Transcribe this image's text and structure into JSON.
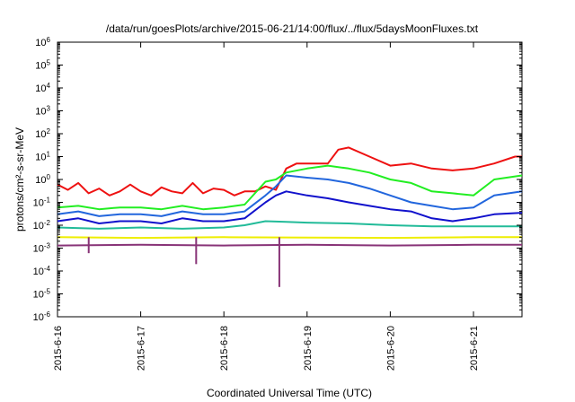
{
  "chart_data": {
    "type": "line",
    "title": "/data/run/goesPlots/archive/2015-06-21/14:00/flux/../flux/5daysMoonFluxes.txt",
    "xlabel": "Coordinated Universal Time (UTC)",
    "ylabel": "protons/cm²-s-sr-MeV",
    "x_unit": "days",
    "xlim": [
      "2015-06-16",
      "2015-06-21 14:00"
    ],
    "x_ticks": [
      "2015-6-16",
      "2015-6-17",
      "2015-6-18",
      "2015-6-19",
      "2015-6-20",
      "2015-6-21"
    ],
    "y_scale": "log",
    "ylim": [
      1e-06,
      1000000.0
    ],
    "y_ticks": [
      {
        "base": "10",
        "exp": "-6"
      },
      {
        "base": "10",
        "exp": "-5"
      },
      {
        "base": "10",
        "exp": "-4"
      },
      {
        "base": "10",
        "exp": "-3"
      },
      {
        "base": "10",
        "exp": "-2"
      },
      {
        "base": "10",
        "exp": "-1"
      },
      {
        "base": "10",
        "exp": "0"
      },
      {
        "base": "10",
        "exp": "1"
      },
      {
        "base": "10",
        "exp": "2"
      },
      {
        "base": "10",
        "exp": "3"
      },
      {
        "base": "10",
        "exp": "4"
      },
      {
        "base": "10",
        "exp": "5"
      },
      {
        "base": "10",
        "exp": "6"
      }
    ],
    "grid": false,
    "legend": "none",
    "series": [
      {
        "color": "#ee1111",
        "x": [
          "2015-06-16 00:00",
          "2015-06-16 03:00",
          "2015-06-16 06:00",
          "2015-06-16 09:00",
          "2015-06-16 12:00",
          "2015-06-16 15:00",
          "2015-06-16 18:00",
          "2015-06-16 21:00",
          "2015-06-17 00:00",
          "2015-06-17 03:00",
          "2015-06-17 06:00",
          "2015-06-17 09:00",
          "2015-06-17 12:00",
          "2015-06-17 15:00",
          "2015-06-17 18:00",
          "2015-06-17 21:00",
          "2015-06-18 00:00",
          "2015-06-18 03:00",
          "2015-06-18 06:00",
          "2015-06-18 09:00",
          "2015-06-18 12:00",
          "2015-06-18 15:00",
          "2015-06-18 18:00",
          "2015-06-18 21:00",
          "2015-06-19 00:00",
          "2015-06-19 06:00",
          "2015-06-19 09:00",
          "2015-06-19 12:00",
          "2015-06-19 18:00",
          "2015-06-20 00:00",
          "2015-06-20 06:00",
          "2015-06-20 12:00",
          "2015-06-20 18:00",
          "2015-06-21 00:00",
          "2015-06-21 06:00",
          "2015-06-21 12:00",
          "2015-06-21 14:00"
        ],
        "y": [
          0.6,
          0.35,
          0.7,
          0.25,
          0.4,
          0.2,
          0.3,
          0.6,
          0.3,
          0.2,
          0.45,
          0.3,
          0.25,
          0.7,
          0.25,
          0.4,
          0.35,
          0.2,
          0.3,
          0.3,
          0.5,
          0.35,
          3,
          5,
          5,
          5,
          20,
          25,
          10,
          4,
          5,
          3,
          2.5,
          3,
          5,
          10,
          10
        ]
      },
      {
        "color": "#22ee22",
        "x": [
          "2015-06-16 00:00",
          "2015-06-16 06:00",
          "2015-06-16 12:00",
          "2015-06-16 18:00",
          "2015-06-17 00:00",
          "2015-06-17 06:00",
          "2015-06-17 12:00",
          "2015-06-17 18:00",
          "2015-06-18 00:00",
          "2015-06-18 06:00",
          "2015-06-18 12:00",
          "2015-06-18 15:00",
          "2015-06-18 18:00",
          "2015-06-19 00:00",
          "2015-06-19 06:00",
          "2015-06-19 12:00",
          "2015-06-19 18:00",
          "2015-06-20 00:00",
          "2015-06-20 06:00",
          "2015-06-20 12:00",
          "2015-06-20 18:00",
          "2015-06-21 00:00",
          "2015-06-21 06:00",
          "2015-06-21 14:00"
        ],
        "y": [
          0.06,
          0.07,
          0.05,
          0.06,
          0.06,
          0.05,
          0.07,
          0.05,
          0.06,
          0.08,
          0.8,
          1,
          2,
          3,
          4,
          3,
          2,
          1,
          0.7,
          0.3,
          0.25,
          0.2,
          1,
          1.5
        ]
      },
      {
        "color": "#2266dd",
        "x": [
          "2015-06-16 00:00",
          "2015-06-16 06:00",
          "2015-06-16 12:00",
          "2015-06-16 18:00",
          "2015-06-17 00:00",
          "2015-06-17 06:00",
          "2015-06-17 12:00",
          "2015-06-17 18:00",
          "2015-06-18 00:00",
          "2015-06-18 06:00",
          "2015-06-18 12:00",
          "2015-06-18 15:00",
          "2015-06-18 18:00",
          "2015-06-19 00:00",
          "2015-06-19 06:00",
          "2015-06-19 12:00",
          "2015-06-19 18:00",
          "2015-06-20 00:00",
          "2015-06-20 06:00",
          "2015-06-20 12:00",
          "2015-06-20 18:00",
          "2015-06-21 00:00",
          "2015-06-21 06:00",
          "2015-06-21 14:00"
        ],
        "y": [
          0.03,
          0.04,
          0.025,
          0.03,
          0.03,
          0.025,
          0.04,
          0.03,
          0.03,
          0.04,
          0.2,
          0.5,
          1.5,
          1.2,
          1,
          0.7,
          0.4,
          0.2,
          0.1,
          0.07,
          0.05,
          0.06,
          0.2,
          0.3
        ]
      },
      {
        "color": "#1111cc",
        "x": [
          "2015-06-16 00:00",
          "2015-06-16 06:00",
          "2015-06-16 12:00",
          "2015-06-16 18:00",
          "2015-06-17 00:00",
          "2015-06-17 06:00",
          "2015-06-17 12:00",
          "2015-06-17 18:00",
          "2015-06-18 00:00",
          "2015-06-18 06:00",
          "2015-06-18 12:00",
          "2015-06-18 15:00",
          "2015-06-18 18:00",
          "2015-06-19 00:00",
          "2015-06-19 06:00",
          "2015-06-19 12:00",
          "2015-06-19 18:00",
          "2015-06-20 00:00",
          "2015-06-20 06:00",
          "2015-06-20 12:00",
          "2015-06-20 18:00",
          "2015-06-21 00:00",
          "2015-06-21 06:00",
          "2015-06-21 14:00"
        ],
        "y": [
          0.015,
          0.02,
          0.012,
          0.015,
          0.015,
          0.012,
          0.02,
          0.015,
          0.015,
          0.02,
          0.1,
          0.2,
          0.3,
          0.2,
          0.15,
          0.1,
          0.07,
          0.05,
          0.04,
          0.02,
          0.015,
          0.02,
          0.03,
          0.035
        ]
      },
      {
        "color": "#22bb99",
        "x": [
          "2015-06-16 00:00",
          "2015-06-16 12:00",
          "2015-06-17 00:00",
          "2015-06-17 12:00",
          "2015-06-18 00:00",
          "2015-06-18 06:00",
          "2015-06-18 12:00",
          "2015-06-18 18:00",
          "2015-06-19 00:00",
          "2015-06-19 12:00",
          "2015-06-20 00:00",
          "2015-06-20 12:00",
          "2015-06-21 00:00",
          "2015-06-21 14:00"
        ],
        "y": [
          0.008,
          0.007,
          0.008,
          0.007,
          0.008,
          0.01,
          0.015,
          0.014,
          0.013,
          0.012,
          0.01,
          0.009,
          0.009,
          0.009
        ]
      },
      {
        "color": "#eeee00",
        "x": [
          "2015-06-16 00:00",
          "2015-06-17 00:00",
          "2015-06-18 00:00",
          "2015-06-19 00:00",
          "2015-06-20 00:00",
          "2015-06-21 00:00",
          "2015-06-21 14:00"
        ],
        "y": [
          0.003,
          0.0028,
          0.003,
          0.0029,
          0.0028,
          0.003,
          0.003
        ]
      },
      {
        "color": "#883377",
        "x": [
          "2015-06-16 00:00",
          "2015-06-17 00:00",
          "2015-06-18 00:00",
          "2015-06-19 00:00",
          "2015-06-20 00:00",
          "2015-06-21 00:00",
          "2015-06-21 14:00"
        ],
        "y": [
          0.0013,
          0.0014,
          0.0013,
          0.0014,
          0.0013,
          0.0014,
          0.0014
        ]
      }
    ],
    "dips": [
      {
        "x": "2015-06-16 09:00",
        "y": 0.0006
      },
      {
        "x": "2015-06-17 16:00",
        "y": 0.0002
      },
      {
        "x": "2015-06-18 16:00",
        "y": 2e-05
      }
    ]
  }
}
